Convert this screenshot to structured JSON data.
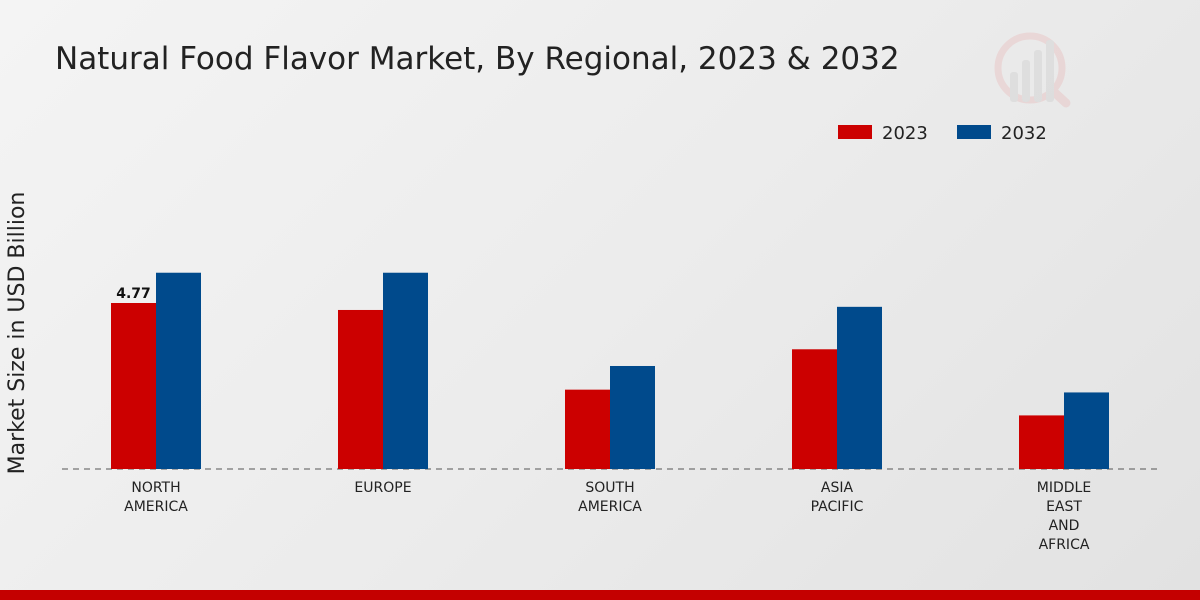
{
  "colors": {
    "series_2023": "#cc0000",
    "series_2032": "#004a8c",
    "accent_strip": "#c40000"
  },
  "logo_icon": "watermark-logo-icon",
  "chart_data": {
    "type": "bar",
    "title": "Natural Food Flavor Market, By Regional, 2023 & 2032",
    "xlabel": "",
    "ylabel": "Market Size in USD Billion",
    "legend_position": "top-right",
    "grid": false,
    "ylim": [
      0,
      10
    ],
    "categories": [
      [
        "NORTH",
        "AMERICA"
      ],
      [
        "EUROPE"
      ],
      [
        "SOUTH",
        "AMERICA"
      ],
      [
        "ASIA",
        "PACIFIC"
      ],
      [
        "MIDDLE",
        "EAST",
        "AND",
        "AFRICA"
      ]
    ],
    "series": [
      {
        "name": "2023",
        "values": [
          4.77,
          4.57,
          2.28,
          3.44,
          1.54
        ]
      },
      {
        "name": "2032",
        "values": [
          5.64,
          5.64,
          2.96,
          4.66,
          2.2
        ]
      }
    ],
    "data_labels": [
      {
        "series": 0,
        "index": 0,
        "text": "4.77"
      }
    ]
  }
}
